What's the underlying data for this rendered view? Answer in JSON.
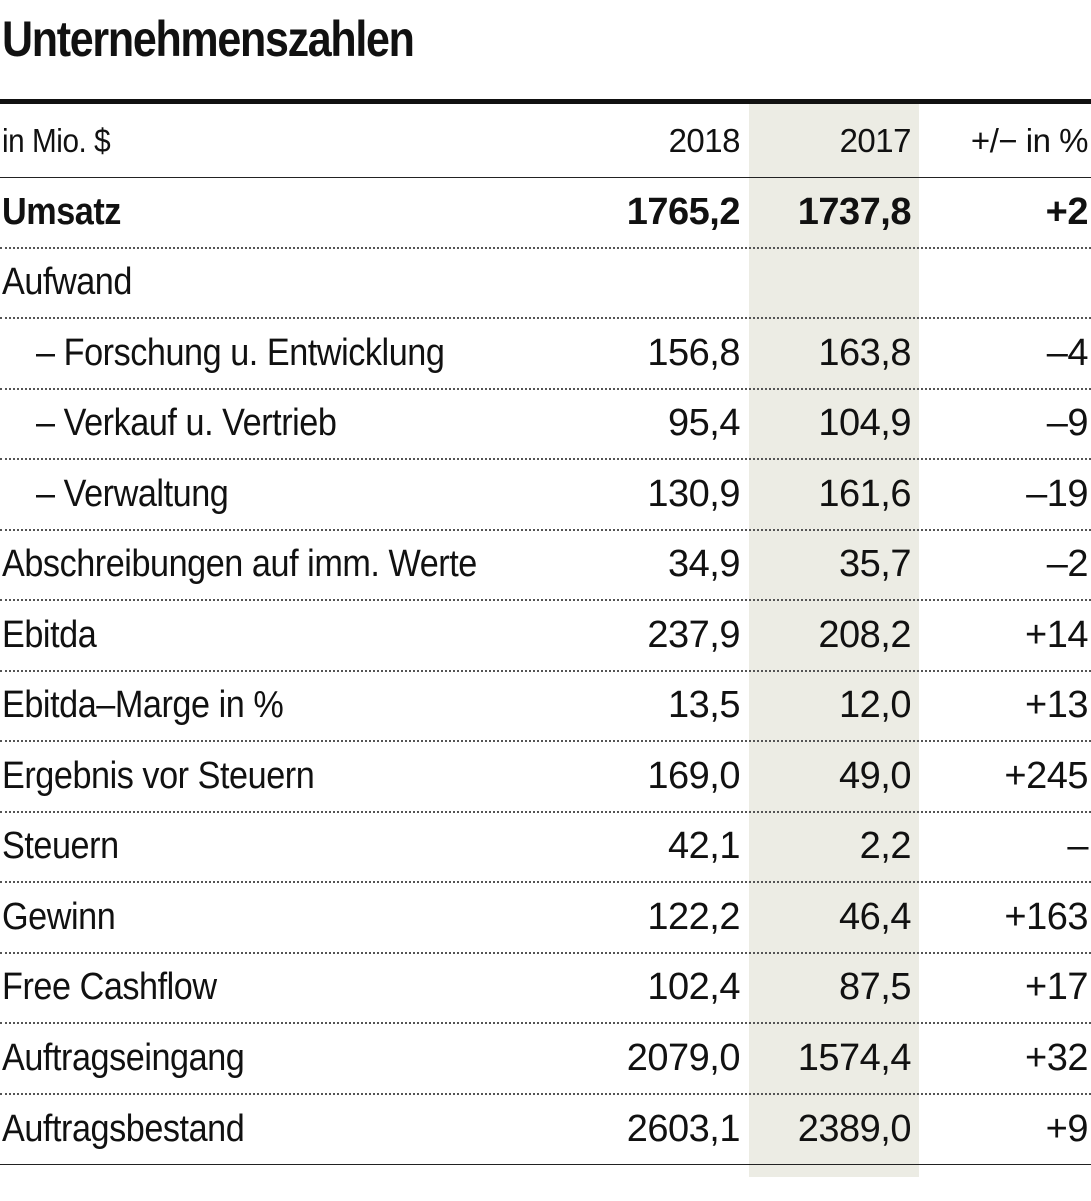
{
  "title": "Unternehmenszahlen",
  "header": {
    "unit": "in Mio. $",
    "col_2018": "2018",
    "col_2017": "2017",
    "col_change": "+/− in %"
  },
  "rows": [
    {
      "label": "Umsatz",
      "v2018": "1765,2",
      "v2017": "1737,8",
      "change": "+2"
    },
    {
      "label": "Aufwand",
      "v2018": "",
      "v2017": "",
      "change": ""
    },
    {
      "label": "– Forschung u. Entwicklung",
      "v2018": "156,8",
      "v2017": "163,8",
      "change": "–4"
    },
    {
      "label": "– Verkauf u. Vertrieb",
      "v2018": "95,4",
      "v2017": "104,9",
      "change": "–9"
    },
    {
      "label": "– Verwaltung",
      "v2018": "130,9",
      "v2017": "161,6",
      "change": "–19"
    },
    {
      "label": "Abschreibungen auf imm. Werte",
      "v2018": "34,9",
      "v2017": "35,7",
      "change": "–2"
    },
    {
      "label": "Ebitda",
      "v2018": "237,9",
      "v2017": "208,2",
      "change": "+14"
    },
    {
      "label": "Ebitda–Marge in %",
      "v2018": "13,5",
      "v2017": "12,0",
      "change": "+13"
    },
    {
      "label": "Ergebnis vor Steuern",
      "v2018": "169,0",
      "v2017": "49,0",
      "change": "+245"
    },
    {
      "label": "Steuern",
      "v2018": "42,1",
      "v2017": "2,2",
      "change": "–"
    },
    {
      "label": "Gewinn",
      "v2018": "122,2",
      "v2017": "46,4",
      "change": "+163"
    },
    {
      "label": "Free Cashflow",
      "v2018": "102,4",
      "v2017": "87,5",
      "change": "+17"
    },
    {
      "label": "Auftragseingang",
      "v2018": "2079,0",
      "v2017": "1574,4",
      "change": "+32"
    },
    {
      "label": "Auftragsbestand",
      "v2018": "2603,1",
      "v2017": "2389,0",
      "change": "+9"
    }
  ]
}
